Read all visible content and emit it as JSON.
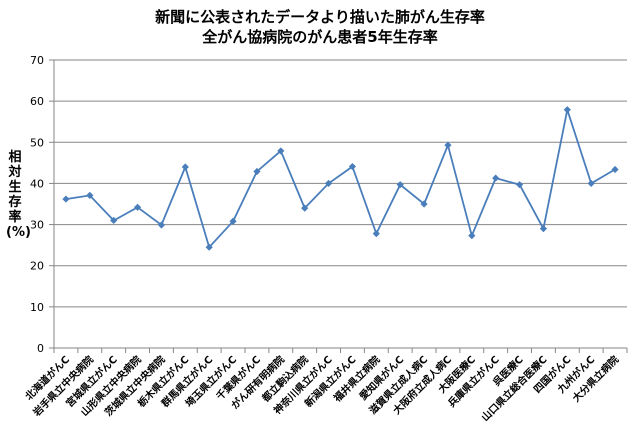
{
  "chart_data": {
    "type": "line",
    "title": "新聞に公表されたデータより描いた肺がん生存率",
    "subtitle": "全がん協病院のがん患者5年生存率",
    "xlabel": "",
    "ylabel": "相対生存率(%)",
    "ylim": [
      0,
      70
    ],
    "yticks": [
      0,
      10,
      20,
      30,
      40,
      50,
      60,
      70
    ],
    "grid": true,
    "legend": "none",
    "line_color": "#4a7ebb",
    "categories": [
      "北海道がんC",
      "岩手県立中央病院",
      "宮城県立がんC",
      "山形県立中央病院",
      "茨城県立中央病院",
      "栃木県立がんC",
      "群馬県立がんC",
      "埼玉県立がんC",
      "千葉県がんC",
      "がん研有明病院",
      "都立駒込病院",
      "神奈川県立がんC",
      "新潟県立がんC",
      "福井県立病院",
      "愛知県がんC",
      "滋賀県立成人病C",
      "大阪府立成人病C",
      "大阪医療C",
      "兵庫県立がんC",
      "呉医療C",
      "山口県立総合医療C",
      "四国がんC",
      "九州がんC",
      "大分県立病院"
    ],
    "values": [
      36.2,
      37.1,
      31.0,
      34.2,
      29.9,
      44.0,
      24.5,
      30.8,
      42.9,
      47.9,
      34.0,
      40.0,
      44.1,
      27.8,
      39.7,
      35.0,
      49.3,
      27.3,
      41.3,
      39.7,
      29.0,
      57.9,
      40.0,
      43.4
    ]
  }
}
